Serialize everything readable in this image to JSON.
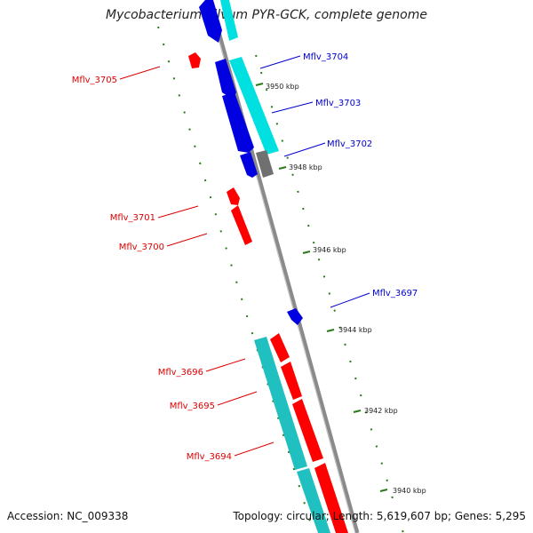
{
  "title": "Mycobacterium gilvum PYR-GCK, complete genome",
  "accession": "Accession: NC_009338",
  "summary": "Topology: circular; Length: 5,619,607 bp; Genes: 5,295",
  "colors": {
    "backbone": "#8a8a8a",
    "forward_gene": "#0000e0",
    "reverse_gene": "#ff0000",
    "cds_cyan": "#00e0e0",
    "cds_teal": "#20c0c0",
    "other_gray": "#707070",
    "tick": "#2a7a1a",
    "label_blue": "#0000cc",
    "label_red": "#dd0000"
  },
  "kbp_labels": [
    "3950 kbp",
    "3948 kbp",
    "3946 kbp",
    "3944 kbp",
    "3942 kbp",
    "3940 kbp"
  ],
  "right_labels": [
    "Mflv_3704",
    "Mflv_3703",
    "Mflv_3702",
    "Mflv_3697"
  ],
  "left_labels": [
    "Mflv_3705",
    "Mflv_3701",
    "Mflv_3700",
    "Mflv_3696",
    "Mflv_3695",
    "Mflv_3694"
  ]
}
